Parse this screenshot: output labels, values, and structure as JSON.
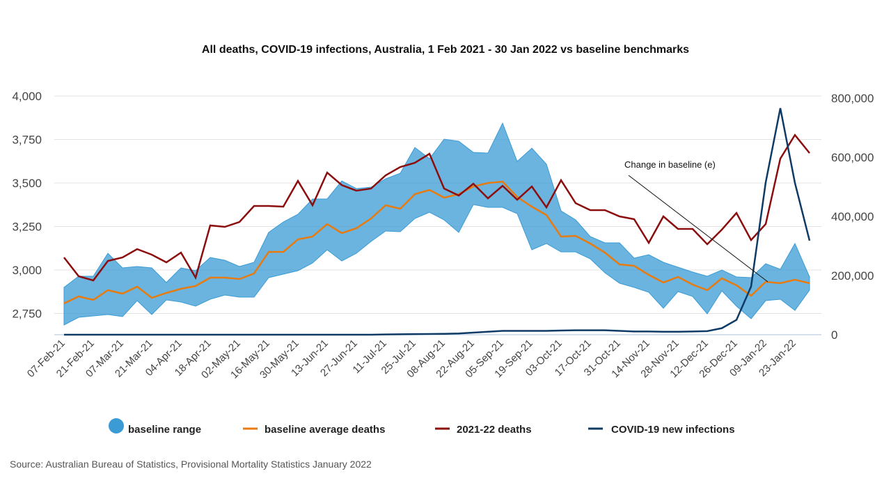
{
  "chart_data": {
    "type": "line",
    "title": "All deaths, COVID-19 infections, Australia, 1 Feb 2021 - 30 Jan 2022 vs baseline benchmarks",
    "xlabel": "",
    "ylabel_left": "",
    "ylabel_right": "",
    "y_left": {
      "ylim": [
        2625,
        4000
      ],
      "ticks": [
        2750,
        3000,
        3250,
        3500,
        3750,
        4000
      ],
      "tick_labels": [
        "2,750",
        "3,000",
        "3,250",
        "3,500",
        "3,750",
        "4,000"
      ]
    },
    "y_right": {
      "ylim": [
        0,
        800000
      ],
      "ticks": [
        0,
        200000,
        400000,
        600000,
        800000
      ],
      "tick_labels": [
        "0",
        "200,000",
        "400,000",
        "600,000",
        "800,000"
      ]
    },
    "x": [
      "07-Feb-21",
      "14-Feb-21",
      "21-Feb-21",
      "28-Feb-21",
      "07-Mar-21",
      "14-Mar-21",
      "21-Mar-21",
      "28-Mar-21",
      "04-Apr-21",
      "11-Apr-21",
      "18-Apr-21",
      "25-Apr-21",
      "02-May-21",
      "09-May-21",
      "16-May-21",
      "23-May-21",
      "30-May-21",
      "06-Jun-21",
      "13-Jun-21",
      "20-Jun-21",
      "27-Jun-21",
      "04-Jul-21",
      "11-Jul-21",
      "18-Jul-21",
      "25-Jul-21",
      "01-Aug-21",
      "08-Aug-21",
      "15-Aug-21",
      "22-Aug-21",
      "29-Aug-21",
      "05-Sep-21",
      "12-Sep-21",
      "19-Sep-21",
      "26-Sep-21",
      "03-Oct-21",
      "10-Oct-21",
      "17-Oct-21",
      "24-Oct-21",
      "31-Oct-21",
      "07-Nov-21",
      "14-Nov-21",
      "21-Nov-21",
      "28-Nov-21",
      "05-Dec-21",
      "12-Dec-21",
      "19-Dec-21",
      "26-Dec-21",
      "02-Jan-22",
      "09-Jan-22",
      "16-Jan-22",
      "23-Jan-22",
      "30-Jan-22"
    ],
    "x_tick_labels": [
      "07-Feb-21",
      "21-Feb-21",
      "07-Mar-21",
      "21-Mar-21",
      "04-Apr-21",
      "18-Apr-21",
      "02-May-21",
      "16-May-21",
      "30-May-21",
      "13-Jun-21",
      "27-Jun-21",
      "11-Jul-21",
      "25-Jul-21",
      "08-Aug-21",
      "22-Aug-21",
      "05-Sep-21",
      "19-Sep-21",
      "03-Oct-21",
      "17-Oct-21",
      "31-Oct-21",
      "14-Nov-21",
      "28-Nov-21",
      "12-Dec-21",
      "26-Dec-21",
      "09-Jan-22",
      "23-Jan-22"
    ],
    "series": [
      {
        "name": "baseline range",
        "type": "area",
        "axis": "left",
        "color": "#3a9bd5",
        "upper": [
          2900,
          2964,
          2964,
          3096,
          3012,
          3020,
          3012,
          2928,
          3012,
          2996,
          3072,
          3056,
          3020,
          3044,
          3216,
          3276,
          3320,
          3408,
          3408,
          3512,
          3468,
          3476,
          3524,
          3556,
          3704,
          3640,
          3752,
          3740,
          3676,
          3672,
          3844,
          3624,
          3700,
          3608,
          3340,
          3288,
          3192,
          3156,
          3156,
          3068,
          3088,
          3044,
          3016,
          2988,
          2964,
          3000,
          2960,
          2956,
          3036,
          3004,
          3152,
          2960
        ],
        "lower": [
          2684,
          2728,
          2736,
          2744,
          2732,
          2824,
          2744,
          2828,
          2816,
          2792,
          2832,
          2856,
          2844,
          2844,
          2956,
          2976,
          2996,
          3040,
          3116,
          3052,
          3096,
          3164,
          3224,
          3220,
          3296,
          3332,
          3288,
          3216,
          3376,
          3360,
          3360,
          3324,
          3116,
          3152,
          3104,
          3104,
          3064,
          2984,
          2924,
          2900,
          2872,
          2780,
          2876,
          2848,
          2748,
          2880,
          2792,
          2720,
          2824,
          2832,
          2768,
          2884
        ]
      },
      {
        "name": "baseline average deaths",
        "type": "line",
        "axis": "left",
        "color": "#e87b10",
        "values": [
          2808,
          2848,
          2828,
          2884,
          2864,
          2904,
          2840,
          2868,
          2892,
          2908,
          2956,
          2956,
          2948,
          2980,
          3104,
          3104,
          3176,
          3192,
          3264,
          3212,
          3240,
          3296,
          3372,
          3352,
          3436,
          3460,
          3416,
          3436,
          3480,
          3500,
          3508,
          3420,
          3364,
          3316,
          3192,
          3196,
          3152,
          3100,
          3032,
          3024,
          2972,
          2928,
          2960,
          2916,
          2884,
          2952,
          2912,
          2852,
          2932,
          2924,
          2944,
          2924
        ]
      },
      {
        "name": "2021-22 deaths",
        "type": "line",
        "axis": "left",
        "color": "#8b0d0d",
        "values": [
          3072,
          2964,
          2940,
          3052,
          3072,
          3120,
          3088,
          3044,
          3100,
          2956,
          3256,
          3248,
          3276,
          3368,
          3368,
          3364,
          3512,
          3372,
          3560,
          3488,
          3456,
          3468,
          3544,
          3592,
          3616,
          3668,
          3468,
          3428,
          3496,
          3412,
          3484,
          3404,
          3480,
          3360,
          3516,
          3384,
          3344,
          3344,
          3308,
          3292,
          3156,
          3308,
          3236,
          3236,
          3148,
          3232,
          3328,
          3172,
          3264,
          3640,
          3776,
          3672
        ]
      },
      {
        "name": "COVID-19 new infections",
        "type": "line",
        "axis": "right",
        "color": "#0d3b66",
        "values": [
          0,
          0,
          0,
          0,
          0,
          0,
          0,
          0,
          0,
          0,
          0,
          0,
          0,
          0,
          0,
          0,
          0,
          0,
          0,
          0,
          0,
          0,
          1000,
          1500,
          2000,
          2500,
          3000,
          4000,
          7000,
          10000,
          13000,
          13000,
          13000,
          13000,
          14000,
          15000,
          15000,
          15000,
          13000,
          11000,
          11000,
          10000,
          10000,
          11000,
          12000,
          22000,
          50000,
          163000,
          515000,
          766000,
          513000,
          318000
        ]
      }
    ],
    "annotations": [
      {
        "text": "Change in baseline (e)",
        "points_to": "09-Jan-22"
      }
    ],
    "legend": {
      "placement": "bottom"
    },
    "grid": true
  },
  "source": "Source: Australian Bureau of Statistics, Provisional Mortality Statistics January 2022"
}
